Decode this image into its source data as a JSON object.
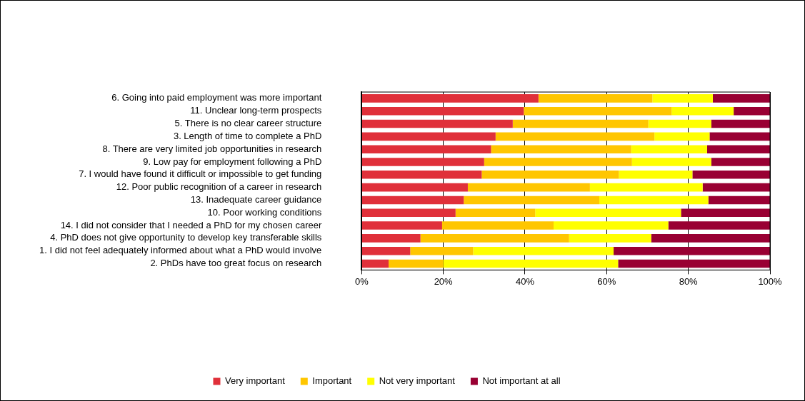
{
  "chart_data": {
    "type": "bar",
    "orientation": "horizontal",
    "stacked": true,
    "categories": [
      "6. Going into paid employment was more important",
      "11. Unclear long-term prospects",
      "5. There is no clear career structure",
      "3. Length of time to complete a PhD",
      "8. There are very limited job opportunities in research",
      "9. Low pay for employment following a PhD",
      "7. I would have found it difficult or impossible to get funding",
      "12. Poor public recognition of a career in research",
      "13. Inadequate career guidance",
      "10. Poor working conditions",
      "14. I did not consider that I needed a PhD for my chosen career",
      "4. PhD does not give opportunity to develop key transferable skills",
      "1. I did not feel adequately informed about what a PhD would involve",
      "2. PhDs have too great focus on research"
    ],
    "series": [
      {
        "name": "Very important",
        "color": "#e0303a",
        "values": [
          43.3,
          39.7,
          37.0,
          32.8,
          31.7,
          30.0,
          29.4,
          26.0,
          25.0,
          23.0,
          19.7,
          14.4,
          11.9,
          6.6
        ]
      },
      {
        "name": "Important",
        "color": "#ffc600",
        "values": [
          27.9,
          36.2,
          33.2,
          38.9,
          34.3,
          36.2,
          33.6,
          29.9,
          33.2,
          19.5,
          27.3,
          36.4,
          15.4,
          13.4
        ]
      },
      {
        "name": "Not very important",
        "color": "#ffff00",
        "values": [
          14.8,
          15.2,
          15.4,
          13.5,
          18.6,
          19.4,
          18.0,
          27.6,
          26.7,
          35.7,
          28.1,
          20.1,
          34.4,
          42.8
        ]
      },
      {
        "name": "Not important at all",
        "color": "#990033",
        "values": [
          14.0,
          8.9,
          14.4,
          14.8,
          15.4,
          14.4,
          19.0,
          16.5,
          15.1,
          21.8,
          24.9,
          29.1,
          38.3,
          37.2
        ]
      }
    ],
    "xlim": [
      0,
      100
    ],
    "xticks": [
      {
        "value": 0,
        "label": "0%"
      },
      {
        "value": 20,
        "label": "20%"
      },
      {
        "value": 40,
        "label": "40%"
      },
      {
        "value": 60,
        "label": "60%"
      },
      {
        "value": 80,
        "label": "80%"
      },
      {
        "value": 100,
        "label": "100%"
      }
    ],
    "grid": "x",
    "legend": "bottom"
  }
}
